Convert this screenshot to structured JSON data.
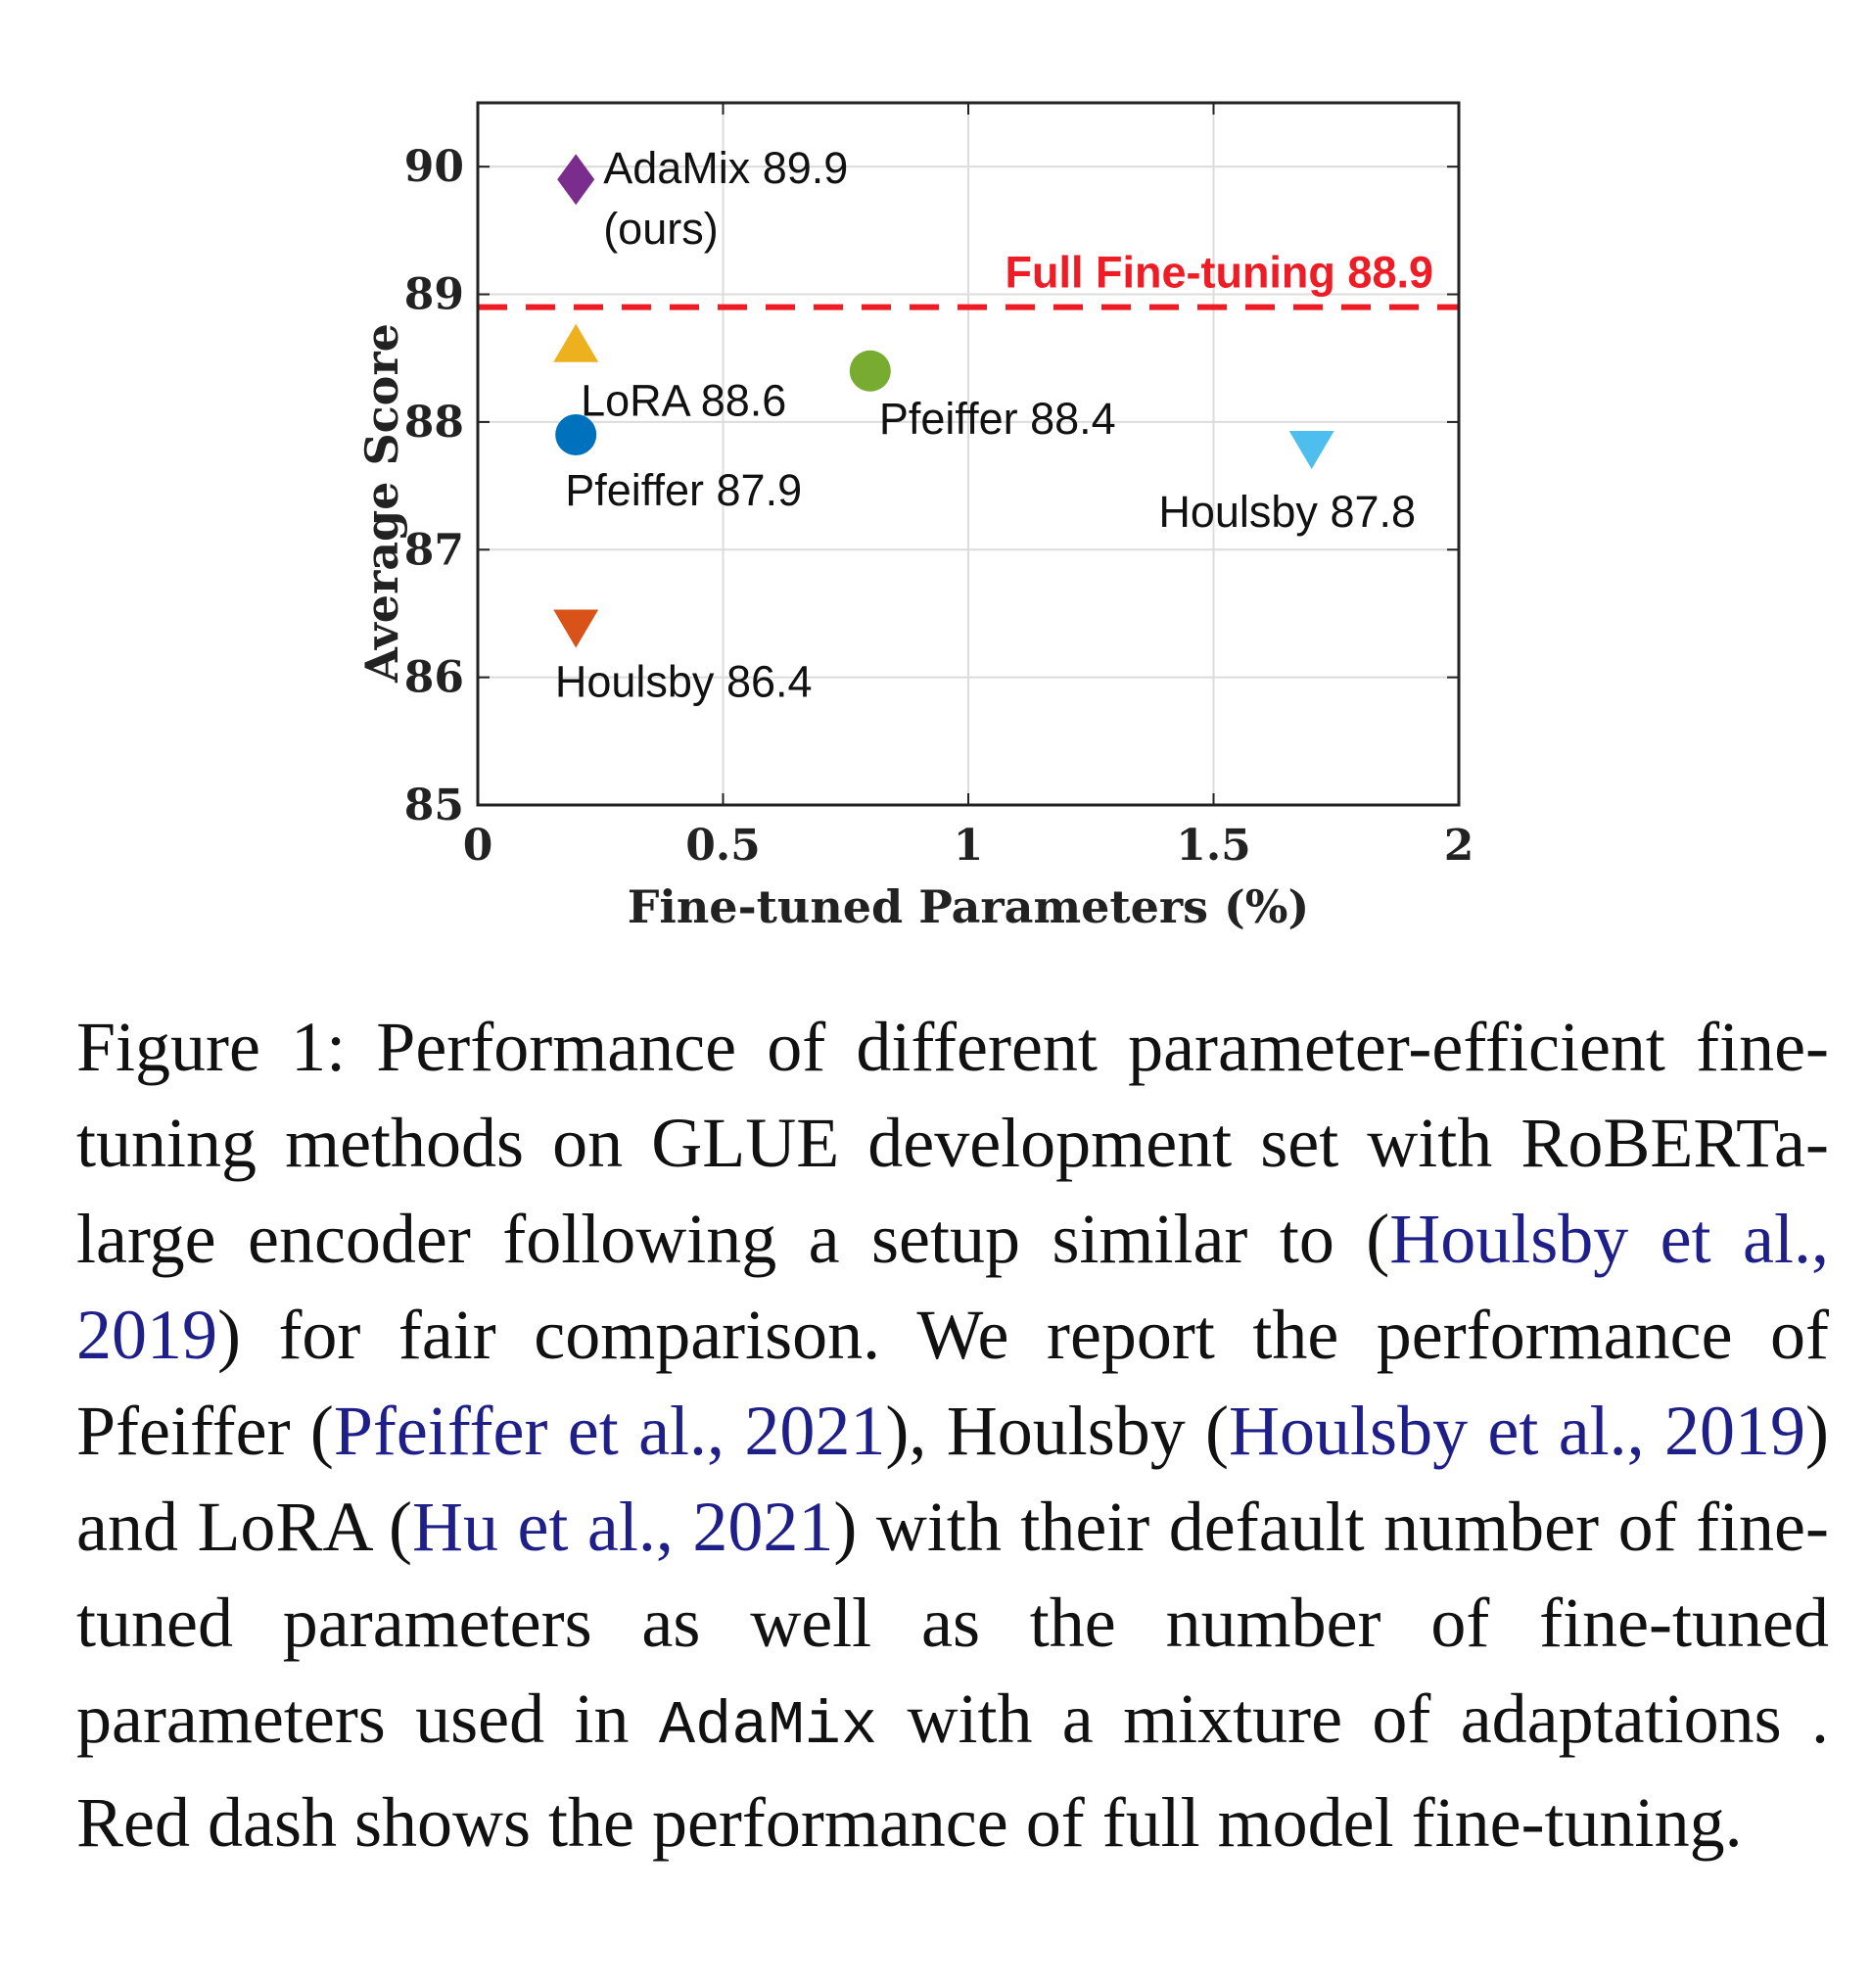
{
  "chart_data": {
    "type": "scatter",
    "xlabel": "Fine-tuned Parameters (%)",
    "ylabel": "Average Score",
    "xlim": [
      0,
      2
    ],
    "ylim": [
      85,
      90.5
    ],
    "xticks": [
      "0",
      "0.5",
      "1",
      "1.5",
      "2"
    ],
    "yticks": [
      "85",
      "86",
      "87",
      "88",
      "89",
      "90"
    ],
    "grid": true,
    "points": [
      {
        "label": "AdaMix 89.9",
        "sublabel": "(ours)",
        "x": 0.2,
        "y": 89.9,
        "marker": "diamond",
        "color": "#7b2d8e"
      },
      {
        "label": "LoRA 88.6",
        "x": 0.2,
        "y": 88.6,
        "marker": "triangle-up",
        "color": "#edb120"
      },
      {
        "label": "Pfeiffer 87.9",
        "x": 0.2,
        "y": 87.9,
        "marker": "circle",
        "color": "#0072bd"
      },
      {
        "label": "Houlsby 86.4",
        "x": 0.2,
        "y": 86.4,
        "marker": "triangle-down",
        "color": "#d95319"
      },
      {
        "label": "Pfeiffer 88.4",
        "x": 0.8,
        "y": 88.4,
        "marker": "circle",
        "color": "#77ac30"
      },
      {
        "label": "Houlsby 87.8",
        "x": 1.7,
        "y": 87.8,
        "marker": "triangle-down",
        "color": "#4dbeee"
      }
    ],
    "reference_line": {
      "label": "Full Fine-tuning 88.9",
      "y": 88.9,
      "style": "dashed",
      "color": "#ee1c25"
    }
  },
  "caption": {
    "prefix": "Figure 1: Performance of different parameter-efficient fine-tuning methods on GLUE development set with RoBERTa-large encoder following a setup similar to (",
    "cite1": "Houlsby et al., 2019",
    "t2": ") for fair comparison. We report the performance of Pfeiffer (",
    "cite2": "Pfeiffer et al., 2021",
    "t3": "), Houlsby (",
    "cite3": "Houlsby et al., 2019",
    "t4": ") and LoRA (",
    "cite4": "Hu et al., 2021",
    "t5": ") with their default number of fine-tuned parameters as well as the number of fine-tuned parameters used in ",
    "code": "AdaMix",
    "t6": " with a mixture of adaptations . Red dash shows the performance of full model fine-tuning."
  }
}
